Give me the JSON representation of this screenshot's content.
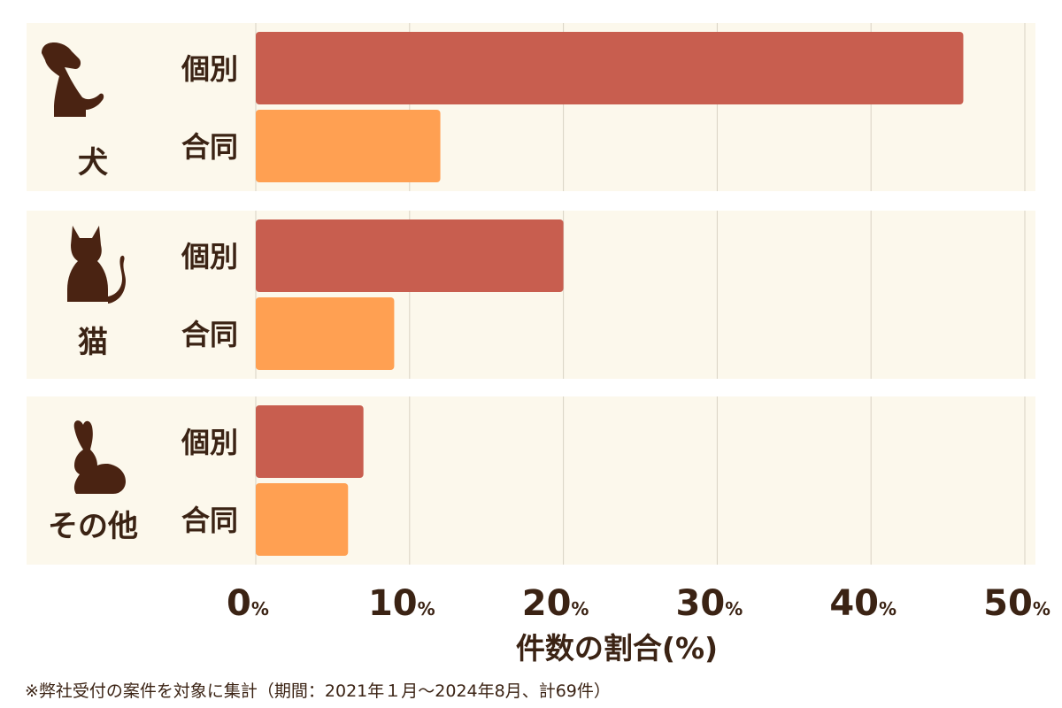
{
  "chart_data": {
    "type": "bar",
    "orientation": "horizontal",
    "groups": [
      {
        "label": "犬",
        "icon": "dog-icon"
      },
      {
        "label": "猫",
        "icon": "cat-icon"
      },
      {
        "label": "その他",
        "icon": "rabbit-icon"
      }
    ],
    "series": [
      {
        "name": "個別",
        "color": "#c85e4f",
        "values": [
          46,
          20,
          7
        ]
      },
      {
        "name": "合同",
        "color": "#ffa052",
        "values": [
          12,
          9,
          6
        ]
      }
    ],
    "xlim": [
      0,
      50
    ],
    "xticks": [
      0,
      10,
      20,
      30,
      40,
      50
    ],
    "tick_unit": "%",
    "xlabel": "件数の割合(%)",
    "grid": true
  },
  "footnote": "※弊社受付の案件を対象に集計（期間：2021年１月〜2024年8月、計69件）",
  "colors": {
    "panel_bg": "#fcf8ec",
    "grid": "#d9d2c4",
    "text": "#3b2314",
    "icon": "#4a2312"
  }
}
